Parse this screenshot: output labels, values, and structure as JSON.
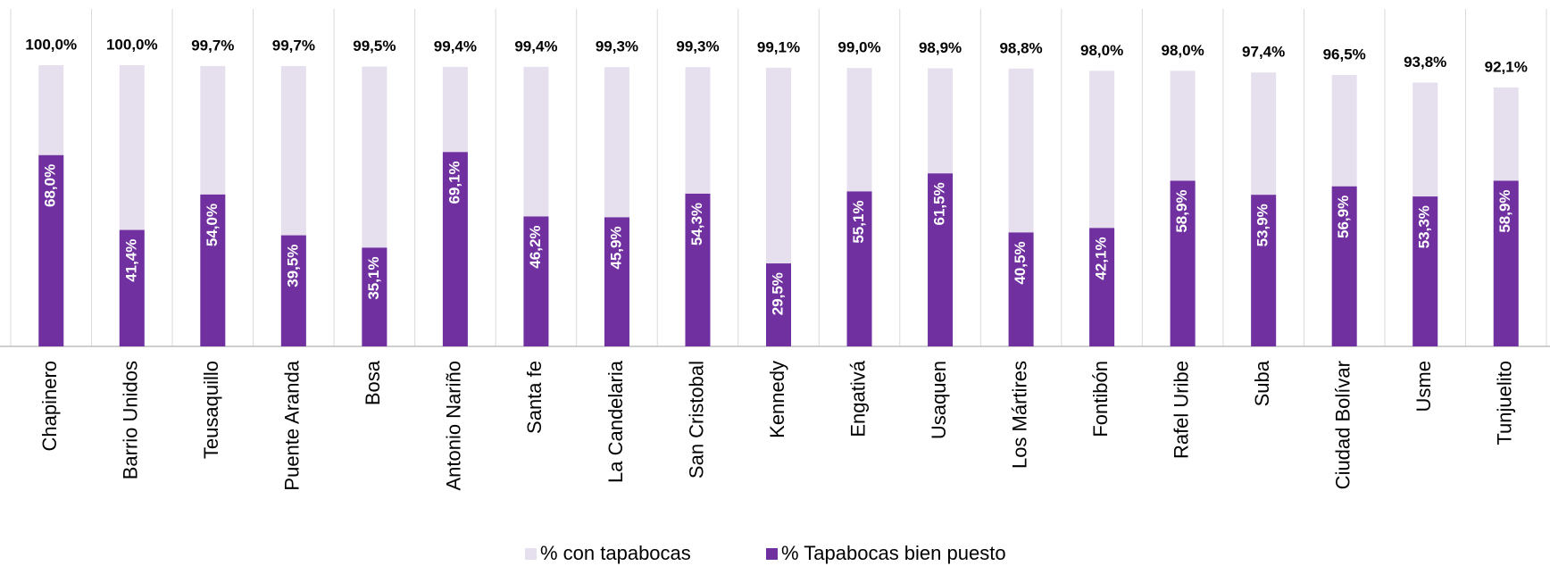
{
  "chart_data": {
    "type": "overlap_bar",
    "categories": [
      "Chapinero",
      "Barrio Unidos",
      "Teusaquillo",
      "Puente Aranda",
      "Bosa",
      "Antonio Nariño",
      "Santa fe",
      "La Candelaria",
      "San Cristobal",
      "Kennedy",
      "Engativá",
      "Usaquen",
      "Los Mártires",
      "Fontibón",
      "Rafel Uribe",
      "Suba",
      "Ciudad Bolívar",
      "Usme",
      "Tunjuelito"
    ],
    "series": [
      {
        "name": "% con tapabocas",
        "color": "#e6e0ee",
        "values": [
          100.0,
          100.0,
          99.7,
          99.7,
          99.5,
          99.4,
          99.4,
          99.3,
          99.3,
          99.1,
          99.0,
          98.9,
          98.8,
          98.0,
          98.0,
          97.4,
          96.5,
          93.8,
          92.1
        ],
        "value_labels": [
          "100,0%",
          "100,0%",
          "99,7%",
          "99,7%",
          "99,5%",
          "99,4%",
          "99,4%",
          "99,3%",
          "99,3%",
          "99,1%",
          "99,0%",
          "98,9%",
          "98,8%",
          "98,0%",
          "98,0%",
          "97,4%",
          "96,5%",
          "93,8%",
          "92,1%"
        ]
      },
      {
        "name": "% Tapabocas bien puesto",
        "color": "#7030a0",
        "values": [
          68.0,
          41.4,
          54.0,
          39.5,
          35.1,
          69.1,
          46.2,
          45.9,
          54.3,
          29.5,
          55.1,
          61.5,
          40.5,
          42.1,
          58.9,
          53.9,
          56.9,
          53.3,
          58.9
        ],
        "value_labels": [
          "68,0%",
          "41,4%",
          "54,0%",
          "39,5%",
          "35,1%",
          "69,1%",
          "46,2%",
          "45,9%",
          "54,3%",
          "29,5%",
          "55,1%",
          "61,5%",
          "40,5%",
          "42,1%",
          "58,9%",
          "53,9%",
          "56,9%",
          "53,3%",
          "58,9%"
        ]
      }
    ],
    "ylim": [
      0,
      100
    ]
  }
}
